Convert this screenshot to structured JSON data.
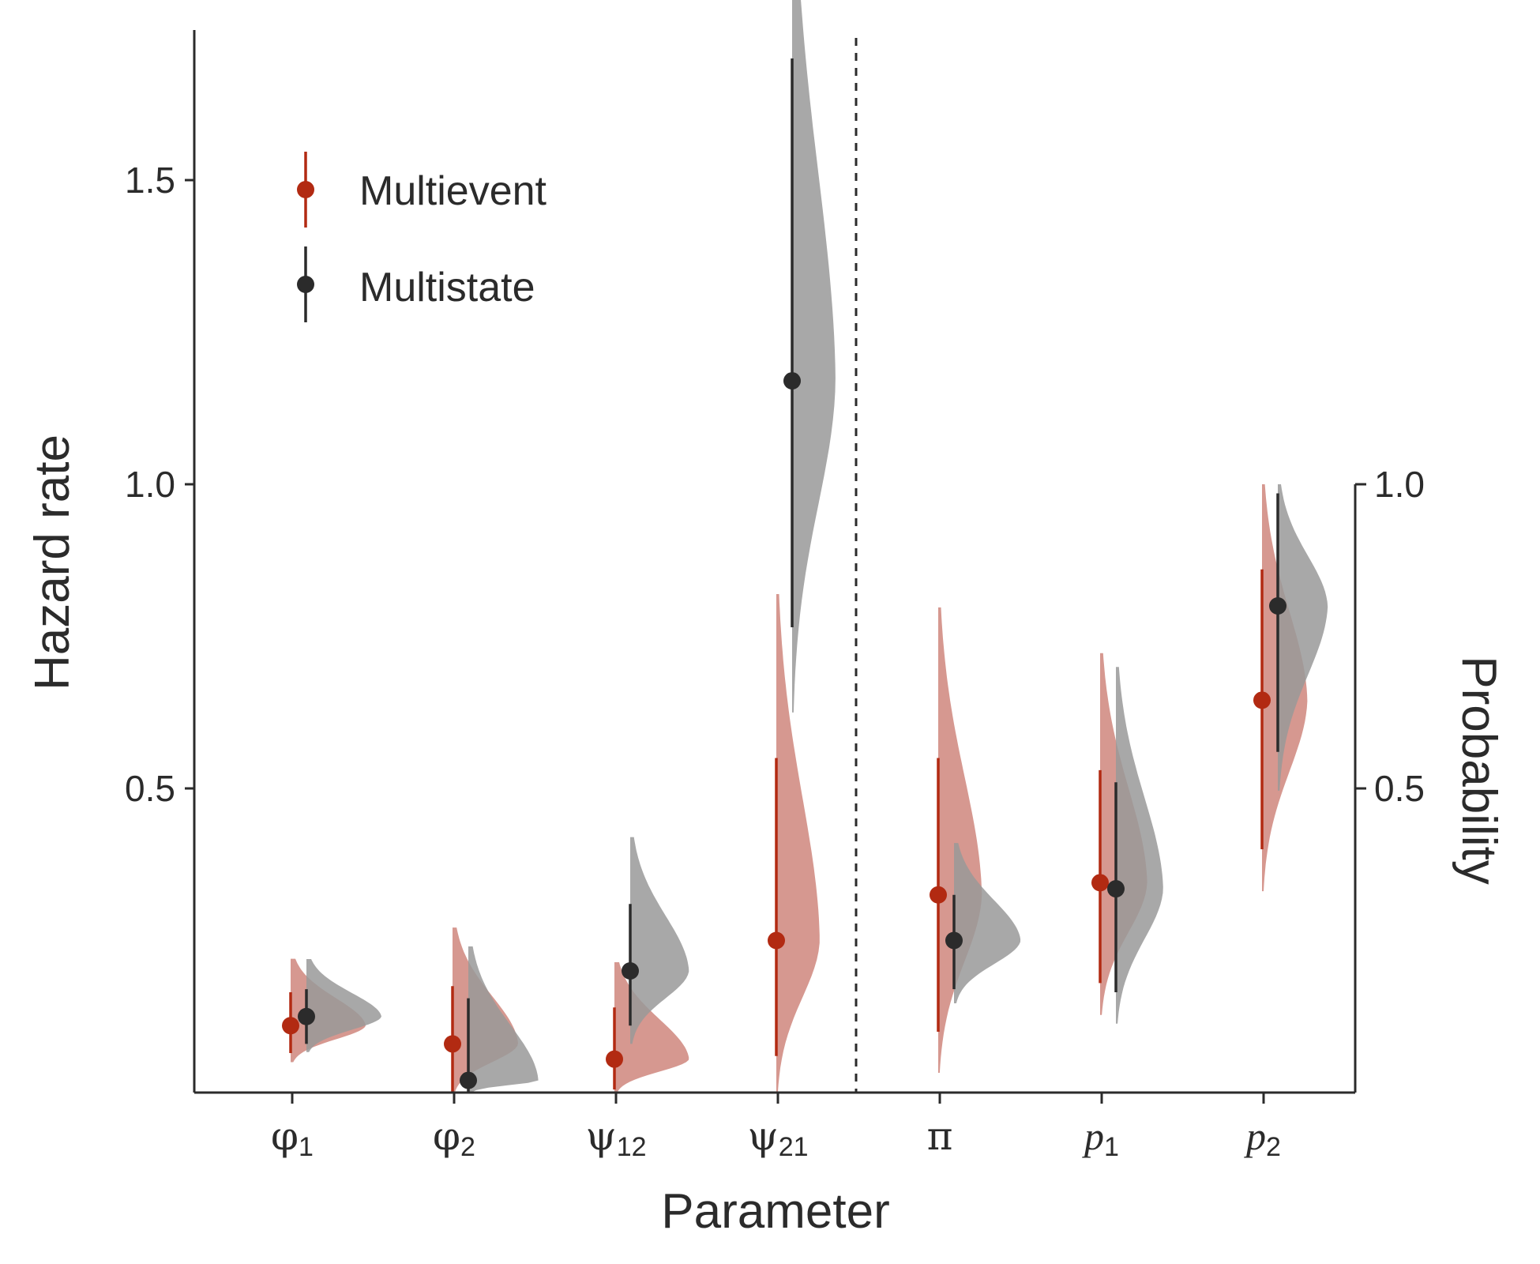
{
  "chart_data": {
    "type": "violin",
    "xlabel": "Parameter",
    "ylabel": "Hazard rate",
    "y2label": "Probability",
    "ylim": [
      0,
      1.75
    ],
    "y2lim": [
      0,
      1.0
    ],
    "yticks": [
      "0.5",
      "1.0",
      "1.5"
    ],
    "y2ticks": [
      "0.5",
      "1.0"
    ],
    "categories": [
      {
        "sym": "φ",
        "sub": "1",
        "italic": false
      },
      {
        "sym": "φ",
        "sub": "2",
        "italic": false
      },
      {
        "sym": "ψ",
        "sub": "12",
        "italic": false
      },
      {
        "sym": "ψ",
        "sub": "21",
        "italic": false
      },
      {
        "sym": "π",
        "sub": "",
        "italic": false
      },
      {
        "sym": "p",
        "sub": "1",
        "italic": true
      },
      {
        "sym": "p",
        "sub": "2",
        "italic": true
      }
    ],
    "divider_between": [
      3,
      4
    ],
    "legend": {
      "position": "top-left",
      "entries": [
        "Multievent",
        "Multistate"
      ]
    },
    "colors": {
      "Multievent": "#b22a12",
      "Multievent_fill": "#d4928a",
      "Multistate": "#2b2b2b",
      "Multistate_fill": "#999999",
      "overlap_fill": "#9d5f55"
    },
    "series": [
      {
        "name": "Multievent",
        "axis": [
          "hazard",
          "hazard",
          "hazard",
          "hazard",
          "probability",
          "probability",
          "probability"
        ],
        "estimate": [
          0.11,
          0.08,
          0.055,
          0.25,
          0.325,
          0.345,
          0.645
        ],
        "lower": [
          0.065,
          0.0,
          0.005,
          0.06,
          0.1,
          0.18,
          0.4
        ],
        "upper": [
          0.165,
          0.175,
          0.14,
          0.55,
          0.55,
          0.53,
          0.86
        ]
      },
      {
        "name": "Multistate",
        "axis": [
          "hazard",
          "hazard",
          "hazard",
          "hazard",
          "probability",
          "probability",
          "probability"
        ],
        "estimate": [
          0.125,
          0.02,
          0.2,
          1.17,
          0.25,
          0.335,
          0.8
        ],
        "lower": [
          0.08,
          0.0,
          0.11,
          0.765,
          0.17,
          0.165,
          0.56
        ],
        "upper": [
          0.17,
          0.155,
          0.31,
          1.7,
          0.325,
          0.51,
          0.985
        ]
      }
    ]
  }
}
